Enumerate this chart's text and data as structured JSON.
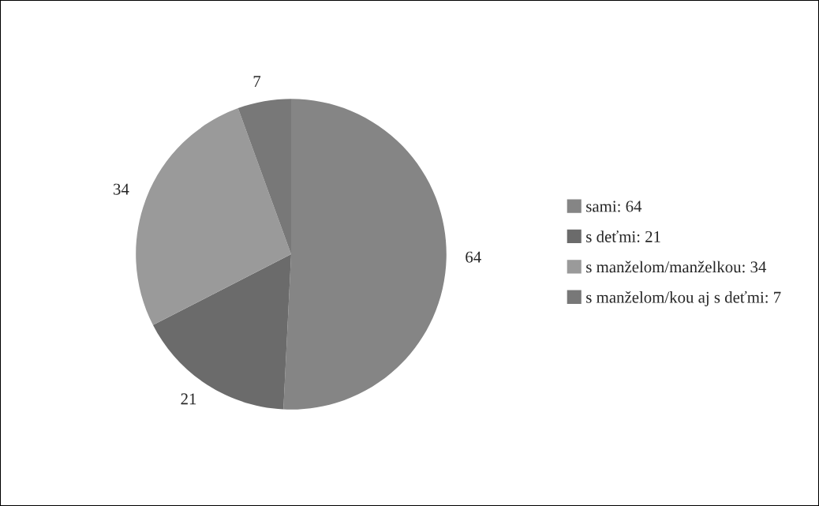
{
  "chart_data": {
    "type": "pie",
    "categories": [
      "sami: 64",
      "s deťmi: 21",
      "s manželom/manželkou: 34",
      "s manželom/kou aj s deťmi: 7"
    ],
    "values": [
      64,
      21,
      34,
      7
    ],
    "colors": [
      "#858585",
      "#6b6b6b",
      "#9a9a9a",
      "#787878"
    ],
    "data_labels": true,
    "legend": "right"
  }
}
